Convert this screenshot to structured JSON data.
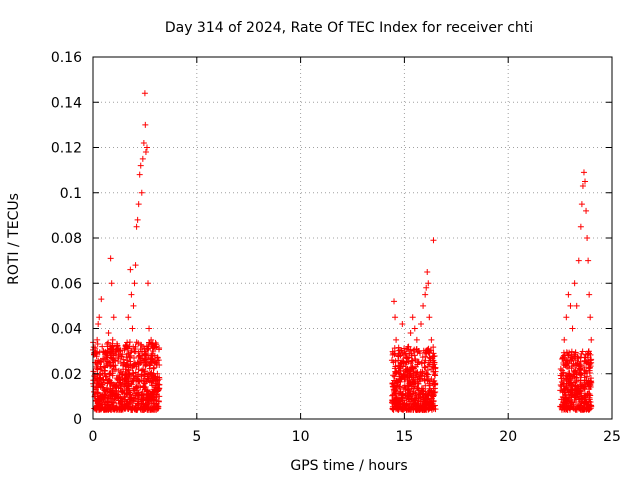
{
  "chart_data": {
    "type": "scatter",
    "title": "Day 314 of 2024, Rate Of TEC Index for receiver chti",
    "xlabel": "GPS time / hours",
    "ylabel": "ROTI / TECUs",
    "xlim": [
      0,
      25
    ],
    "ylim": [
      0,
      0.16
    ],
    "grid": true,
    "marker": "+",
    "color": "#ff0000",
    "xticks": [
      0,
      5,
      10,
      15,
      20,
      25
    ],
    "xtick_labels": [
      "0",
      "5",
      "10",
      "15",
      "20",
      "25"
    ],
    "yticks": [
      0,
      0.02,
      0.04,
      0.06,
      0.08,
      0.1,
      0.12,
      0.14,
      0.16
    ],
    "ytick_labels": [
      "0",
      "0.02",
      "0.04",
      "0.06",
      "0.08",
      "0.1",
      "0.12",
      "0.14",
      "0.16"
    ],
    "series": [
      {
        "name": "ROTI",
        "points": [
          [
            0.05,
            0.012
          ],
          [
            0.1,
            0.025
          ],
          [
            0.15,
            0.018
          ],
          [
            0.2,
            0.035
          ],
          [
            0.25,
            0.042
          ],
          [
            0.3,
            0.045
          ],
          [
            0.35,
            0.022
          ],
          [
            0.4,
            0.053
          ],
          [
            0.45,
            0.015
          ],
          [
            0.5,
            0.03
          ],
          [
            0.55,
            0.02
          ],
          [
            0.6,
            0.012
          ],
          [
            0.7,
            0.028
          ],
          [
            0.75,
            0.038
          ],
          [
            0.8,
            0.025
          ],
          [
            0.85,
            0.071
          ],
          [
            0.9,
            0.06
          ],
          [
            0.95,
            0.035
          ],
          [
            1.0,
            0.045
          ],
          [
            1.05,
            0.015
          ],
          [
            1.1,
            0.022
          ],
          [
            1.2,
            0.018
          ],
          [
            1.3,
            0.03
          ],
          [
            1.4,
            0.02
          ],
          [
            1.5,
            0.025
          ],
          [
            1.6,
            0.032
          ],
          [
            1.7,
            0.045
          ],
          [
            1.8,
            0.066
          ],
          [
            1.85,
            0.055
          ],
          [
            1.9,
            0.04
          ],
          [
            1.95,
            0.05
          ],
          [
            2.0,
            0.06
          ],
          [
            2.05,
            0.068
          ],
          [
            2.1,
            0.085
          ],
          [
            2.15,
            0.088
          ],
          [
            2.2,
            0.095
          ],
          [
            2.25,
            0.108
          ],
          [
            2.3,
            0.112
          ],
          [
            2.35,
            0.1
          ],
          [
            2.4,
            0.115
          ],
          [
            2.45,
            0.122
          ],
          [
            2.5,
            0.144
          ],
          [
            2.52,
            0.13
          ],
          [
            2.55,
            0.118
          ],
          [
            2.6,
            0.12
          ],
          [
            2.65,
            0.06
          ],
          [
            2.7,
            0.04
          ],
          [
            2.8,
            0.035
          ],
          [
            2.9,
            0.03
          ],
          [
            3.0,
            0.025
          ],
          [
            3.05,
            0.032
          ],
          [
            3.1,
            0.02
          ],
          [
            14.5,
            0.052
          ],
          [
            14.55,
            0.045
          ],
          [
            14.6,
            0.035
          ],
          [
            14.7,
            0.028
          ],
          [
            14.8,
            0.02
          ],
          [
            14.9,
            0.042
          ],
          [
            15.0,
            0.03
          ],
          [
            15.1,
            0.025
          ],
          [
            15.2,
            0.032
          ],
          [
            15.3,
            0.038
          ],
          [
            15.4,
            0.045
          ],
          [
            15.5,
            0.04
          ],
          [
            15.6,
            0.035
          ],
          [
            15.7,
            0.03
          ],
          [
            15.8,
            0.042
          ],
          [
            15.9,
            0.05
          ],
          [
            16.0,
            0.055
          ],
          [
            16.05,
            0.058
          ],
          [
            16.1,
            0.065
          ],
          [
            16.15,
            0.06
          ],
          [
            16.2,
            0.045
          ],
          [
            16.3,
            0.035
          ],
          [
            16.4,
            0.079
          ],
          [
            16.45,
            0.025
          ],
          [
            22.6,
            0.02
          ],
          [
            22.7,
            0.035
          ],
          [
            22.8,
            0.045
          ],
          [
            22.9,
            0.055
          ],
          [
            23.0,
            0.05
          ],
          [
            23.1,
            0.04
          ],
          [
            23.2,
            0.06
          ],
          [
            23.3,
            0.05
          ],
          [
            23.4,
            0.07
          ],
          [
            23.5,
            0.085
          ],
          [
            23.55,
            0.095
          ],
          [
            23.6,
            0.103
          ],
          [
            23.65,
            0.109
          ],
          [
            23.7,
            0.105
          ],
          [
            23.75,
            0.092
          ],
          [
            23.8,
            0.08
          ],
          [
            23.85,
            0.07
          ],
          [
            23.9,
            0.055
          ],
          [
            23.95,
            0.045
          ],
          [
            24.0,
            0.035
          ]
        ]
      }
    ],
    "clusters": [
      {
        "x_range": [
          0.0,
          3.2
        ],
        "y_range": [
          0.004,
          0.034
        ]
      },
      {
        "x_range": [
          14.4,
          16.5
        ],
        "y_range": [
          0.004,
          0.032
        ]
      },
      {
        "x_range": [
          22.5,
          24.0
        ],
        "y_range": [
          0.004,
          0.03
        ]
      }
    ]
  }
}
